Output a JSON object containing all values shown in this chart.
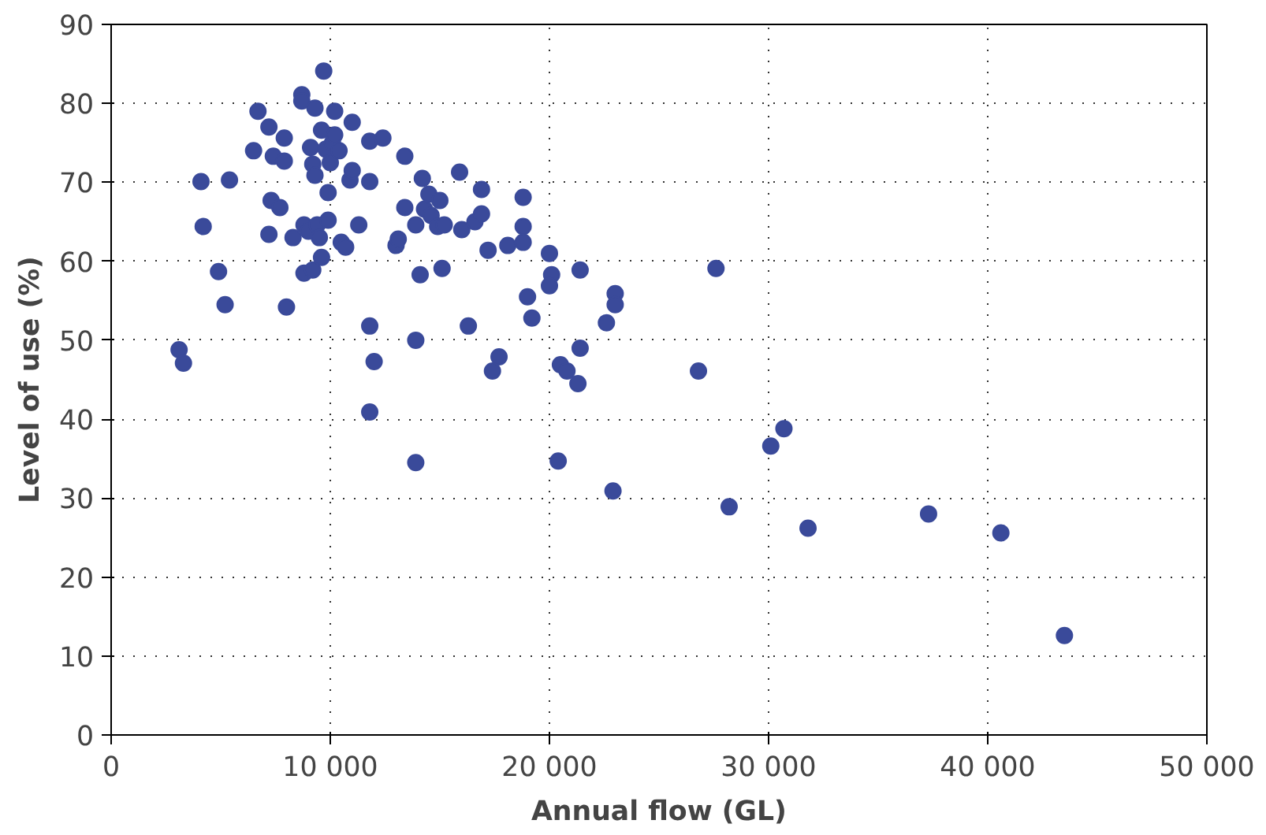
{
  "chart_data": {
    "type": "scatter",
    "xlabel": "Annual flow (GL)",
    "ylabel": "Level of use (%)",
    "x": [
      3100,
      3300,
      4100,
      4200,
      4900,
      5200,
      5400,
      6500,
      6700,
      7200,
      7200,
      7300,
      7400,
      7700,
      7900,
      7900,
      8000,
      8300,
      8700,
      8700,
      8800,
      8800,
      9000,
      9100,
      9200,
      9200,
      9300,
      9400,
      9300,
      9500,
      9600,
      9600,
      9700,
      9800,
      9900,
      9900,
      10000,
      10100,
      10200,
      10200,
      10400,
      10500,
      10700,
      10900,
      11000,
      11000,
      11300,
      11800,
      11800,
      11800,
      11800,
      12000,
      12400,
      13000,
      13100,
      13400,
      13400,
      13900,
      13900,
      13900,
      14100,
      14200,
      14300,
      14500,
      14600,
      14900,
      15000,
      15100,
      15200,
      15900,
      16000,
      16300,
      16600,
      16900,
      16900,
      17200,
      17400,
      17700,
      18100,
      18800,
      18800,
      18800,
      19000,
      19200,
      20000,
      20100,
      20000,
      20400,
      20500,
      20800,
      21300,
      21400,
      21400,
      22600,
      22900,
      23000,
      23000,
      26800,
      27600,
      28200,
      30100,
      30700,
      31800,
      37300,
      40600,
      43500
    ],
    "values": [
      48.8,
      47.1,
      70.1,
      64.4,
      58.7,
      54.5,
      70.3,
      74.0,
      79.0,
      77.0,
      63.4,
      67.7,
      73.3,
      66.8,
      72.7,
      75.6,
      54.2,
      63.0,
      81.1,
      80.3,
      64.6,
      58.5,
      63.8,
      74.4,
      72.3,
      58.9,
      79.4,
      64.6,
      70.9,
      63.0,
      76.6,
      60.5,
      84.1,
      74.2,
      65.2,
      68.7,
      72.5,
      75.0,
      79.0,
      76.0,
      74.0,
      62.4,
      61.8,
      70.3,
      77.6,
      71.5,
      64.6,
      40.9,
      51.8,
      70.1,
      75.2,
      47.3,
      75.6,
      62.0,
      62.8,
      73.3,
      66.8,
      34.5,
      50.0,
      64.6,
      58.3,
      70.5,
      66.6,
      68.5,
      65.8,
      64.4,
      67.7,
      59.1,
      64.6,
      71.3,
      64.0,
      51.8,
      65.0,
      69.1,
      66.0,
      61.4,
      46.1,
      47.9,
      62.0,
      62.4,
      68.1,
      64.4,
      55.5,
      52.8,
      61.0,
      58.3,
      56.9,
      34.7,
      46.9,
      46.1,
      44.5,
      49.0,
      58.9,
      52.2,
      30.9,
      55.9,
      54.5,
      46.1,
      59.1,
      28.9,
      36.6,
      38.8,
      26.2,
      28.0,
      25.6,
      12.6
    ],
    "color": "#3a4a9a",
    "marker": "circle",
    "xlim": [
      0,
      50000
    ],
    "ylim": [
      0,
      90
    ],
    "xticks": [
      {
        "value": 0,
        "label": "0"
      },
      {
        "value": 10000,
        "label": "10 000"
      },
      {
        "value": 20000,
        "label": "20 000"
      },
      {
        "value": 30000,
        "label": "30 000"
      },
      {
        "value": 40000,
        "label": "40 000"
      },
      {
        "value": 50000,
        "label": "50 000"
      }
    ],
    "yticks": [
      0,
      10,
      20,
      30,
      40,
      50,
      60,
      70,
      80,
      90
    ],
    "grid": true
  }
}
